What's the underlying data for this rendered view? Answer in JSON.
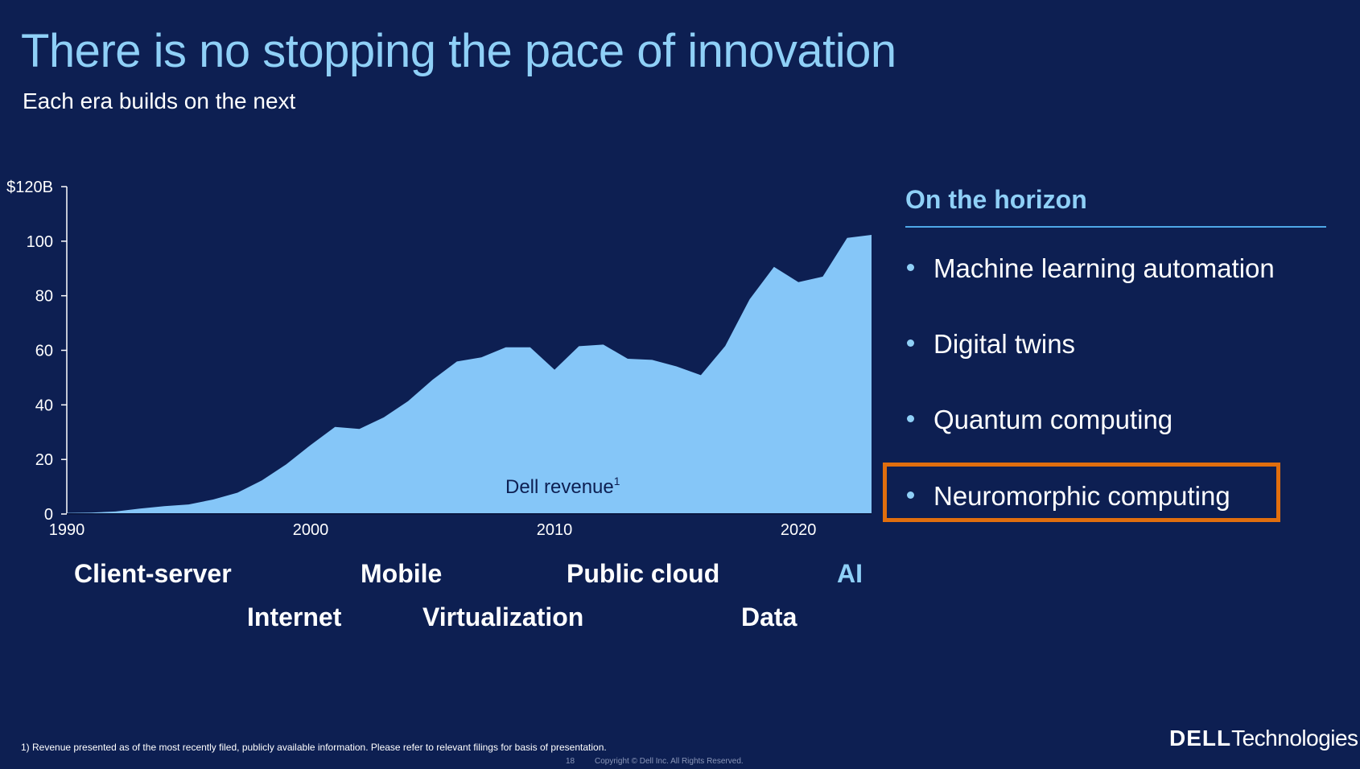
{
  "slide": {
    "title": "There is no stopping the pace of innovation",
    "subtitle": "Each era builds on the next",
    "footnote": "1) Revenue presented as of the most recently filed, publicly available information. Please refer to relevant filings for basis of presentation.",
    "page_number": "18",
    "copyright": "Copyright © Dell Inc. All Rights Reserved.",
    "logo": {
      "brand": "DELL",
      "suffix": "Technologies"
    }
  },
  "colors": {
    "background": "#0d1f52",
    "area_fill": "#85c6f8",
    "accent": "#8fd0f7",
    "highlight_border": "#e06e0e"
  },
  "chart_data": {
    "type": "area",
    "series_label": "Dell revenue",
    "series_label_superscript": "1",
    "y_tick_labels": [
      "0",
      "20",
      "40",
      "60",
      "80",
      "100",
      "$120B"
    ],
    "y_ticks": [
      0,
      20,
      40,
      60,
      80,
      100,
      120
    ],
    "ylim": [
      0,
      120
    ],
    "x_tick_labels": [
      "1990",
      "2000",
      "2010",
      "2020"
    ],
    "x_ticks": [
      1990,
      2000,
      2010,
      2020
    ],
    "xlim": [
      1990,
      2023
    ],
    "grid": false,
    "x": [
      1990,
      1991,
      1992,
      1993,
      1994,
      1995,
      1996,
      1997,
      1998,
      1999,
      2000,
      2001,
      2002,
      2003,
      2004,
      2005,
      2006,
      2007,
      2008,
      2009,
      2010,
      2011,
      2012,
      2013,
      2014,
      2015,
      2016,
      2017,
      2018,
      2019,
      2020,
      2021,
      2022,
      2023
    ],
    "values": [
      0.4,
      0.5,
      0.9,
      2.0,
      2.9,
      3.5,
      5.3,
      7.8,
      12.3,
      18.2,
      25.3,
      31.9,
      31.2,
      35.4,
      41.4,
      49.2,
      55.9,
      57.4,
      61.1,
      61.1,
      52.9,
      61.5,
      62.1,
      56.9,
      56.5,
      54.1,
      50.9,
      61.6,
      78.7,
      90.6,
      85.0,
      87.0,
      101.2,
      102.3
    ]
  },
  "eras": [
    "Client-server",
    "Internet",
    "Mobile",
    "Virtualization",
    "Public cloud",
    "Data",
    "AI"
  ],
  "horizon": {
    "title": "On the horizon",
    "items": [
      "Machine learning automation",
      "Digital twins",
      "Quantum computing",
      "Neuromorphic computing"
    ],
    "highlighted_index": 3
  }
}
